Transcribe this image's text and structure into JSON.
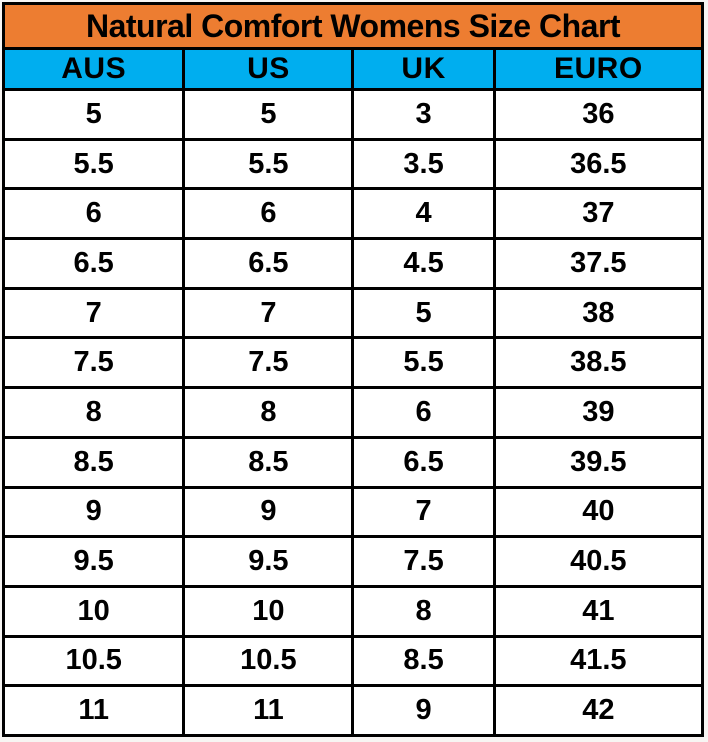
{
  "chart_data": {
    "type": "table",
    "title": "Natural Comfort Womens Size Chart",
    "columns": [
      "AUS",
      "US",
      "UK",
      "EURO"
    ],
    "rows": [
      [
        "5",
        "5",
        "3",
        "36"
      ],
      [
        "5.5",
        "5.5",
        "3.5",
        "36.5"
      ],
      [
        "6",
        "6",
        "4",
        "37"
      ],
      [
        "6.5",
        "6.5",
        "4.5",
        "37.5"
      ],
      [
        "7",
        "7",
        "5",
        "38"
      ],
      [
        "7.5",
        "7.5",
        "5.5",
        "38.5"
      ],
      [
        "8",
        "8",
        "6",
        "39"
      ],
      [
        "8.5",
        "8.5",
        "6.5",
        "39.5"
      ],
      [
        "9",
        "9",
        "7",
        "40"
      ],
      [
        "9.5",
        "9.5",
        "7.5",
        "40.5"
      ],
      [
        "10",
        "10",
        "8",
        "41"
      ],
      [
        "10.5",
        "10.5",
        "8.5",
        "41.5"
      ],
      [
        "11",
        "11",
        "9",
        "42"
      ]
    ]
  },
  "colors": {
    "title_bg": "#ED7D31",
    "header_bg": "#00AEEF",
    "row_bg": "#FFFFFF",
    "border": "#000000",
    "text": "#000000"
  }
}
